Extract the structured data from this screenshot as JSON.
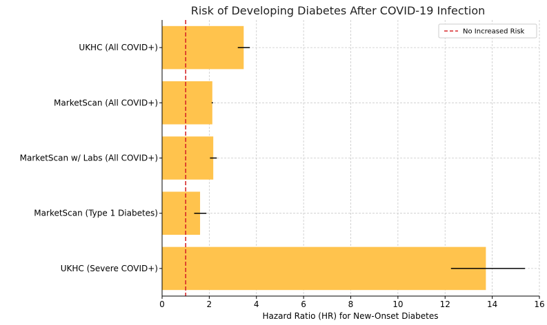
{
  "chart_data": {
    "type": "bar",
    "orientation": "horizontal",
    "title": "Risk of Developing Diabetes After COVID-19 Infection",
    "xlabel": "Hazard Ratio (HR) for New-Onset Diabetes",
    "ylabel": "",
    "categories": [
      "UKHC (All COVID+)",
      "MarketScan (All COVID+)",
      "MarketScan w/ Labs (All COVID+)",
      "MarketScan (Type 1 Diabetes)",
      "UKHC (Severe COVID+)"
    ],
    "values": [
      3.46,
      2.13,
      2.17,
      1.61,
      13.73
    ],
    "error_low": [
      3.21,
      2.1,
      2.03,
      1.36,
      12.25
    ],
    "error_high": [
      3.72,
      2.16,
      2.32,
      1.88,
      15.39
    ],
    "xlim": [
      0,
      16
    ],
    "xticks": [
      0,
      2,
      4,
      6,
      8,
      10,
      12,
      14,
      16
    ],
    "reference_line": {
      "x": 1,
      "label": "No Increased Risk",
      "color": "#d62728"
    },
    "bar_color": "#ffc34d",
    "grid": true,
    "legend_position": "top-right"
  }
}
